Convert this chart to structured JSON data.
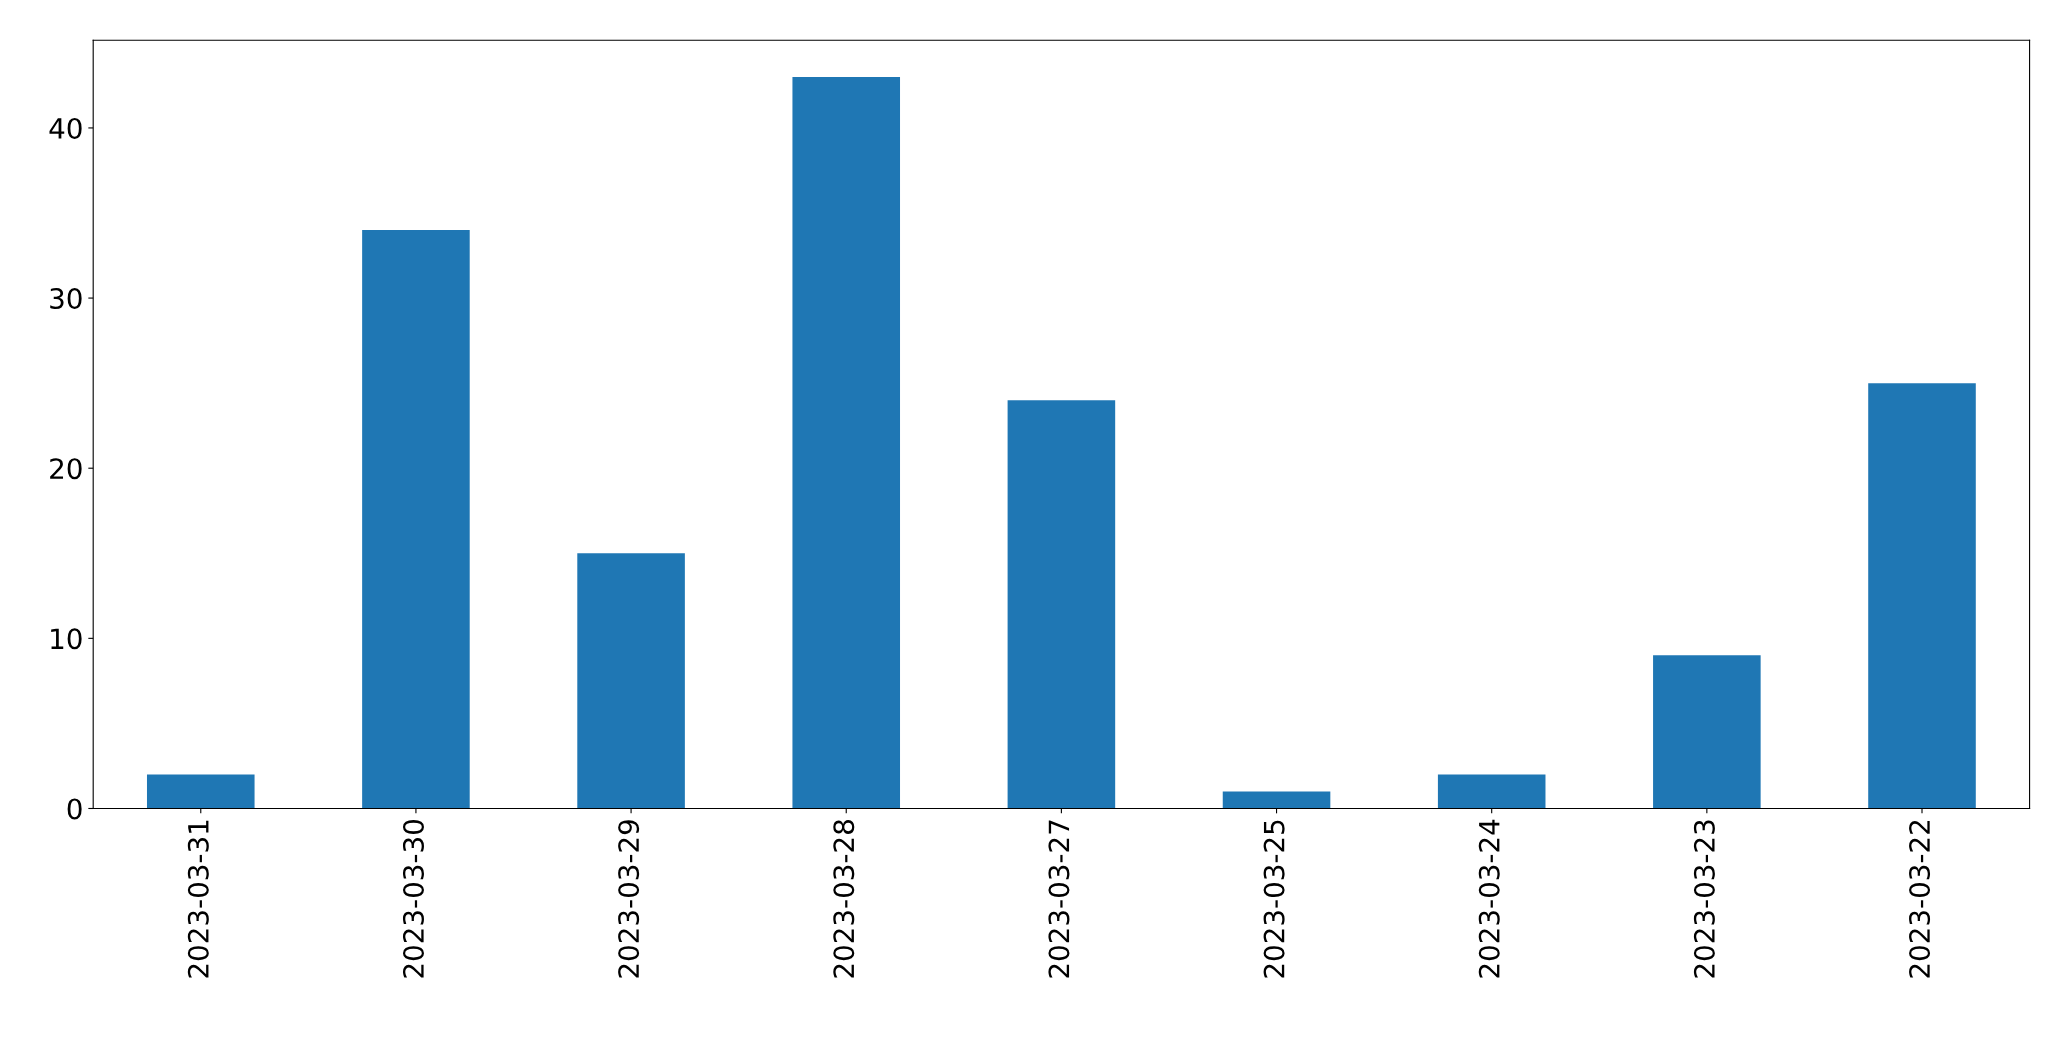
{
  "chart_data": {
    "type": "bar",
    "categories": [
      "2023-03-31",
      "2023-03-30",
      "2023-03-29",
      "2023-03-28",
      "2023-03-27",
      "2023-03-25",
      "2023-03-24",
      "2023-03-23",
      "2023-03-22"
    ],
    "values": [
      2,
      34,
      15,
      43,
      24,
      1,
      2,
      9,
      25
    ],
    "color": "#1f77b4",
    "ylim": [
      0,
      45.15
    ],
    "yticks": [
      0,
      10,
      20,
      30,
      40
    ],
    "grid": false,
    "legend": false
  }
}
